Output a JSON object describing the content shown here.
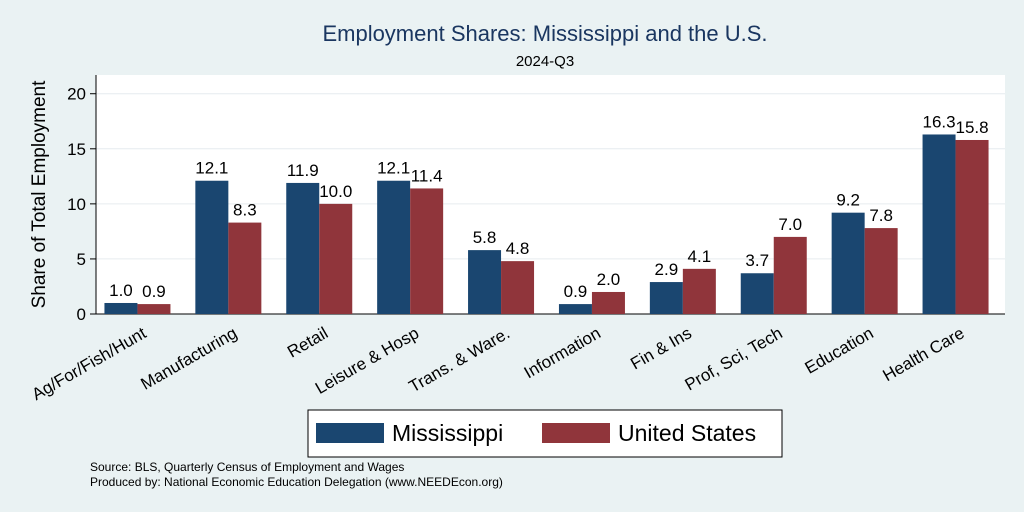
{
  "chart_data": {
    "type": "bar",
    "title": "Employment Shares: Mississippi and the U.S.",
    "subtitle": "2024-Q3",
    "xlabel": "",
    "ylabel": "Share of Total Employment",
    "ylim": [
      0,
      21.7
    ],
    "yticks": [
      "0",
      "5",
      "10",
      "15",
      "20"
    ],
    "grid": true,
    "legend_position": "bottom",
    "categories": [
      "Ag/For/Fish/Hunt",
      "Manufacturing",
      "Retail",
      "Leisure & Hosp",
      "Trans. & Ware.",
      "Information",
      "Fin & Ins",
      "Prof, Sci, Tech",
      "Education",
      "Health Care"
    ],
    "series": [
      {
        "name": "Mississippi",
        "color": "#1a4670",
        "values": [
          1.0,
          12.1,
          11.9,
          12.1,
          5.8,
          0.9,
          2.9,
          3.7,
          9.2,
          16.3
        ],
        "labels": [
          "1.0",
          "12.1",
          "11.9",
          "12.1",
          "5.8",
          "0.9",
          "2.9",
          "3.7",
          "9.2",
          "16.3"
        ]
      },
      {
        "name": "United States",
        "color": "#90353b",
        "values": [
          0.9,
          8.3,
          10.0,
          11.4,
          4.8,
          2.0,
          4.1,
          7.0,
          7.8,
          15.8
        ],
        "labels": [
          "0.9",
          "8.3",
          "10.0",
          "11.4",
          "4.8",
          "2.0",
          "4.1",
          "7.0",
          "7.8",
          "15.8"
        ]
      }
    ]
  },
  "colors": {
    "background": "#eaf2f3",
    "title": "#1a3660"
  },
  "notes": {
    "source": "Source: BLS, Quarterly Census of Employment and Wages",
    "produced_by": "Produced by: National Economic Education Delegation (www.NEEDEcon.org)"
  }
}
